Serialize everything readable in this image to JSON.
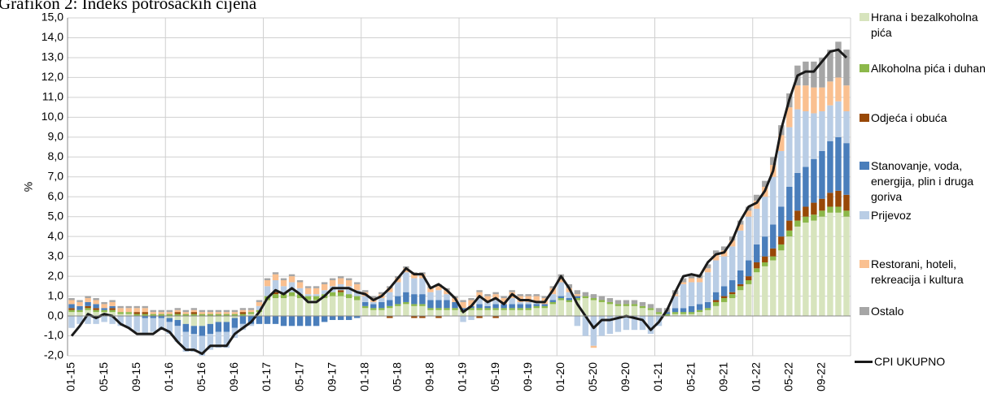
{
  "chart_data": {
    "type": "bar",
    "title": "Grafikon 2: Indeks potrošačkih cijena",
    "y_label": "%",
    "categories": [
      "01-15",
      null,
      null,
      null,
      "05-15",
      null,
      null,
      null,
      "09-15",
      null,
      null,
      null,
      "01-16",
      null,
      null,
      null,
      "05-16",
      null,
      null,
      null,
      "09-16",
      null,
      null,
      null,
      "01-17",
      null,
      null,
      null,
      "05-17",
      null,
      null,
      null,
      "09-17",
      null,
      null,
      null,
      "01-18",
      null,
      null,
      null,
      "05-18",
      null,
      null,
      null,
      "09-18",
      null,
      null,
      null,
      "01-19",
      null,
      null,
      null,
      "05-19",
      null,
      null,
      null,
      "09-19",
      null,
      null,
      null,
      "01-20",
      null,
      null,
      null,
      "05-20",
      null,
      null,
      null,
      "09-20",
      null,
      null,
      null,
      "01-21",
      null,
      null,
      null,
      "05-21",
      null,
      null,
      null,
      "09-21",
      null,
      null,
      null,
      "01-22",
      null,
      null,
      null,
      "05-22",
      null,
      null,
      null,
      "09-22",
      null,
      null,
      null
    ],
    "ylim": [
      -2,
      15
    ],
    "yticks": [
      {
        "value": -2,
        "label": "-2,0"
      },
      {
        "value": -1,
        "label": "-1,0"
      },
      {
        "value": 0,
        "label": "0,0"
      },
      {
        "value": 1,
        "label": "1,0"
      },
      {
        "value": 2,
        "label": "2,0"
      },
      {
        "value": 3,
        "label": "3,0"
      },
      {
        "value": 4,
        "label": "4,0"
      },
      {
        "value": 5,
        "label": "5,0"
      },
      {
        "value": 6,
        "label": "6,0"
      },
      {
        "value": 7,
        "label": "7,0"
      },
      {
        "value": 8,
        "label": "8,0"
      },
      {
        "value": 9,
        "label": "9,0"
      },
      {
        "value": 10,
        "label": "10,0"
      },
      {
        "value": 11,
        "label": "11,0"
      },
      {
        "value": 12,
        "label": "12,0"
      },
      {
        "value": 13,
        "label": "13,0"
      },
      {
        "value": 14,
        "label": "14,0"
      },
      {
        "value": 15,
        "label": "15,0"
      }
    ],
    "grid": true,
    "stacked": true,
    "legend": "right",
    "series": [
      {
        "name": "Hrana i bezalkoholna pića",
        "color": "#d7e4bd",
        "values": [
          0.2,
          0.2,
          0.3,
          0.2,
          0.2,
          0.2,
          0.1,
          0.1,
          0.0,
          0.0,
          0.0,
          0.0,
          -0.1,
          -0.2,
          -0.4,
          -0.5,
          -0.5,
          -0.4,
          -0.3,
          -0.3,
          -0.1,
          0.0,
          0.1,
          0.2,
          0.8,
          0.9,
          0.9,
          1.0,
          0.9,
          0.8,
          0.8,
          0.9,
          1.0,
          1.0,
          0.9,
          0.8,
          0.4,
          0.3,
          0.3,
          0.4,
          0.5,
          0.6,
          0.5,
          0.5,
          0.3,
          0.3,
          0.3,
          0.3,
          0.2,
          0.3,
          0.3,
          0.3,
          0.3,
          0.3,
          0.3,
          0.3,
          0.3,
          0.4,
          0.4,
          0.6,
          0.8,
          0.7,
          0.8,
          0.9,
          0.8,
          0.7,
          0.6,
          0.5,
          0.5,
          0.5,
          0.4,
          0.3,
          0.1,
          0.0,
          0.1,
          0.1,
          0.1,
          0.2,
          0.3,
          0.5,
          0.7,
          0.9,
          1.3,
          1.6,
          2.2,
          2.5,
          2.8,
          3.3,
          4.0,
          4.5,
          4.7,
          4.8,
          5.0,
          5.2,
          5.2,
          5.0
        ]
      },
      {
        "name": "Alkoholna pića i duhan",
        "color": "#8cb84a",
        "values": [
          0.1,
          0.1,
          0.1,
          0.1,
          0.1,
          0.1,
          0.1,
          0.1,
          0.1,
          0.1,
          0.1,
          0.1,
          0.1,
          0.1,
          0.1,
          0.1,
          0.1,
          0.1,
          0.1,
          0.1,
          0.1,
          0.1,
          0.1,
          0.1,
          0.2,
          0.2,
          0.2,
          0.2,
          0.2,
          0.2,
          0.2,
          0.2,
          0.2,
          0.2,
          0.2,
          0.2,
          0.1,
          0.1,
          0.1,
          0.1,
          0.1,
          0.1,
          0.1,
          0.1,
          0.1,
          0.1,
          0.1,
          0.1,
          0.1,
          0.1,
          0.1,
          0.1,
          0.1,
          0.1,
          0.1,
          0.1,
          0.1,
          0.1,
          0.1,
          0.1,
          0.1,
          0.1,
          0.1,
          0.1,
          0.1,
          0.1,
          0.1,
          0.1,
          0.1,
          0.1,
          0.1,
          0.1,
          0.1,
          0.1,
          0.1,
          0.1,
          0.1,
          0.1,
          0.1,
          0.2,
          0.2,
          0.2,
          0.2,
          0.2,
          0.2,
          0.2,
          0.2,
          0.3,
          0.3,
          0.3,
          0.3,
          0.3,
          0.3,
          0.3,
          0.3,
          0.3
        ]
      },
      {
        "name": "Odjeća i obuća",
        "color": "#984807",
        "values": [
          0.1,
          0.0,
          0.1,
          0.1,
          0.0,
          0.1,
          0.0,
          0.0,
          0.1,
          0.1,
          0.0,
          0.0,
          0.0,
          0.1,
          0.0,
          0.1,
          0.0,
          0.0,
          0.0,
          0.0,
          0.0,
          0.1,
          0.0,
          0.0,
          0.0,
          0.1,
          0.0,
          0.0,
          0.0,
          0.0,
          0.0,
          0.0,
          0.0,
          0.1,
          0.0,
          0.0,
          0.0,
          0.0,
          0.0,
          -0.1,
          0.0,
          0.0,
          -0.1,
          -0.1,
          0.0,
          -0.1,
          0.0,
          0.0,
          0.0,
          0.0,
          -0.1,
          0.0,
          -0.1,
          0.0,
          0.0,
          0.0,
          0.0,
          0.0,
          0.0,
          0.0,
          0.0,
          0.0,
          0.0,
          0.0,
          0.0,
          0.0,
          0.0,
          0.0,
          0.0,
          0.0,
          0.0,
          0.0,
          0.0,
          0.0,
          0.0,
          0.0,
          0.0,
          0.0,
          0.0,
          0.1,
          0.1,
          0.1,
          0.1,
          0.2,
          0.3,
          0.3,
          0.4,
          0.4,
          0.5,
          0.5,
          0.5,
          0.6,
          0.6,
          0.7,
          0.8,
          0.8
        ]
      },
      {
        "name": "Stanovanje, voda, energija, plin i druga goriva",
        "color": "#4a7ebb",
        "values": [
          0.2,
          0.2,
          0.2,
          0.2,
          0.1,
          0.1,
          0.0,
          0.0,
          0.0,
          -0.1,
          -0.1,
          -0.1,
          -0.2,
          -0.3,
          -0.4,
          -0.4,
          -0.5,
          -0.5,
          -0.5,
          -0.5,
          -0.5,
          -0.4,
          -0.4,
          -0.4,
          -0.4,
          -0.4,
          -0.5,
          -0.5,
          -0.5,
          -0.5,
          -0.5,
          -0.3,
          -0.2,
          -0.2,
          -0.2,
          -0.1,
          0.2,
          0.2,
          0.3,
          0.3,
          0.4,
          0.5,
          0.5,
          0.5,
          0.4,
          0.4,
          0.4,
          0.3,
          0.1,
          0.1,
          0.2,
          0.1,
          0.2,
          0.2,
          0.2,
          0.2,
          0.2,
          0.1,
          0.1,
          0.1,
          0.1,
          0.1,
          0.1,
          0.0,
          0.0,
          0.0,
          0.0,
          0.0,
          0.0,
          0.0,
          0.0,
          0.0,
          0.0,
          0.1,
          0.2,
          0.2,
          0.3,
          0.3,
          0.3,
          0.4,
          0.5,
          0.6,
          0.7,
          0.8,
          0.9,
          1.0,
          1.2,
          1.5,
          1.7,
          1.9,
          2.0,
          2.2,
          2.4,
          2.6,
          2.7,
          2.6
        ]
      },
      {
        "name": "Prijevoz",
        "color": "#b9cde5",
        "values": [
          -0.6,
          -0.4,
          -0.4,
          -0.4,
          -0.3,
          -0.4,
          -0.5,
          -0.6,
          -0.8,
          -0.8,
          -0.7,
          -0.6,
          -0.6,
          -0.8,
          -1.0,
          -0.9,
          -1.0,
          -0.8,
          -0.8,
          -0.8,
          -0.5,
          -0.3,
          -0.1,
          0.2,
          0.5,
          0.6,
          0.4,
          0.5,
          0.3,
          0.1,
          0.1,
          0.2,
          0.3,
          0.3,
          0.4,
          0.3,
          0.3,
          0.1,
          0.2,
          0.4,
          0.7,
          1.0,
          0.8,
          0.8,
          0.4,
          0.5,
          0.3,
          0.0,
          -0.3,
          -0.2,
          0.3,
          0.2,
          0.2,
          0.0,
          0.3,
          0.1,
          0.1,
          0.1,
          0.0,
          0.3,
          0.7,
          0.3,
          -0.5,
          -1.0,
          -1.5,
          -1.0,
          -0.9,
          -0.8,
          -0.7,
          -0.7,
          -0.7,
          -0.9,
          -0.5,
          0.0,
          0.6,
          1.2,
          1.2,
          1.1,
          1.5,
          1.6,
          1.5,
          1.7,
          2.0,
          2.2,
          1.8,
          2.0,
          2.4,
          2.8,
          3.0,
          3.2,
          2.8,
          2.3,
          2.0,
          1.8,
          1.8,
          1.6
        ]
      },
      {
        "name": "Restorani, hoteli, rekreacija i kultura",
        "color": "#fac090",
        "values": [
          0.2,
          0.2,
          0.2,
          0.2,
          0.2,
          0.2,
          0.2,
          0.2,
          0.2,
          0.2,
          0.1,
          0.1,
          0.1,
          0.1,
          0.1,
          0.1,
          0.1,
          0.1,
          0.1,
          0.1,
          0.1,
          0.1,
          0.1,
          0.2,
          0.3,
          0.3,
          0.3,
          0.3,
          0.3,
          0.3,
          0.3,
          0.3,
          0.3,
          0.3,
          0.3,
          0.3,
          0.2,
          0.2,
          0.2,
          0.2,
          0.2,
          0.2,
          0.2,
          0.2,
          0.2,
          0.2,
          0.2,
          0.2,
          0.3,
          0.3,
          0.3,
          0.3,
          0.3,
          0.3,
          0.3,
          0.3,
          0.3,
          0.3,
          0.3,
          0.3,
          0.2,
          0.2,
          0.1,
          0.0,
          -0.1,
          0.0,
          0.0,
          0.0,
          0.0,
          0.0,
          0.0,
          0.0,
          0.0,
          0.0,
          0.1,
          0.1,
          0.2,
          0.2,
          0.2,
          0.3,
          0.3,
          0.3,
          0.3,
          0.3,
          0.4,
          0.5,
          0.6,
          0.8,
          1.0,
          1.2,
          1.3,
          1.3,
          1.2,
          1.2,
          1.2,
          1.3
        ]
      },
      {
        "name": "Ostalo",
        "color": "#a6a6a6",
        "values": [
          0.1,
          0.1,
          0.1,
          0.1,
          0.1,
          0.1,
          0.1,
          0.1,
          0.1,
          0.1,
          0.1,
          0.1,
          0.1,
          0.1,
          0.1,
          0.1,
          0.1,
          0.1,
          0.1,
          0.1,
          0.1,
          0.1,
          0.1,
          0.1,
          0.1,
          0.1,
          0.1,
          0.1,
          0.1,
          0.1,
          0.1,
          0.1,
          0.1,
          0.1,
          0.1,
          0.1,
          0.1,
          0.1,
          0.1,
          0.1,
          0.1,
          0.1,
          0.1,
          0.1,
          0.1,
          0.1,
          0.1,
          0.1,
          0.1,
          0.1,
          0.1,
          0.1,
          0.1,
          0.1,
          0.1,
          0.1,
          0.1,
          0.1,
          0.1,
          0.1,
          0.2,
          0.2,
          0.2,
          0.2,
          0.2,
          0.2,
          0.2,
          0.2,
          0.2,
          0.2,
          0.2,
          0.2,
          0.2,
          0.2,
          0.2,
          0.2,
          0.2,
          0.2,
          0.2,
          0.2,
          0.2,
          0.2,
          0.2,
          0.2,
          0.3,
          0.3,
          0.4,
          0.5,
          0.7,
          1.0,
          1.2,
          1.3,
          1.5,
          1.6,
          1.8,
          1.8
        ]
      },
      {
        "name": "CPI UKUPNO",
        "type": "line",
        "color": "#1a1a1a",
        "values": [
          -1.0,
          -0.5,
          0.1,
          -0.1,
          0.1,
          0.0,
          -0.4,
          -0.6,
          -0.9,
          -0.9,
          -0.9,
          -0.6,
          -0.8,
          -1.3,
          -1.7,
          -1.7,
          -1.9,
          -1.5,
          -1.5,
          -1.5,
          -0.9,
          -0.6,
          -0.3,
          0.2,
          0.9,
          1.3,
          1.1,
          1.4,
          1.1,
          0.7,
          0.7,
          1.0,
          1.4,
          1.4,
          1.4,
          1.2,
          1.1,
          0.8,
          1.0,
          1.4,
          1.9,
          2.4,
          2.1,
          2.1,
          1.4,
          1.6,
          1.3,
          0.9,
          0.2,
          0.5,
          1.0,
          0.7,
          0.9,
          0.6,
          1.1,
          0.8,
          0.8,
          0.7,
          0.7,
          1.3,
          2.0,
          1.4,
          0.6,
          0.0,
          -0.6,
          -0.2,
          -0.2,
          -0.1,
          0.0,
          -0.1,
          -0.2,
          -0.7,
          -0.3,
          0.3,
          1.2,
          2.0,
          2.1,
          2.0,
          2.7,
          3.1,
          3.2,
          3.8,
          4.8,
          5.5,
          5.7,
          6.3,
          7.3,
          9.4,
          10.9,
          12.1,
          12.3,
          12.3,
          12.8,
          13.3,
          13.4,
          13.0
        ]
      }
    ]
  }
}
